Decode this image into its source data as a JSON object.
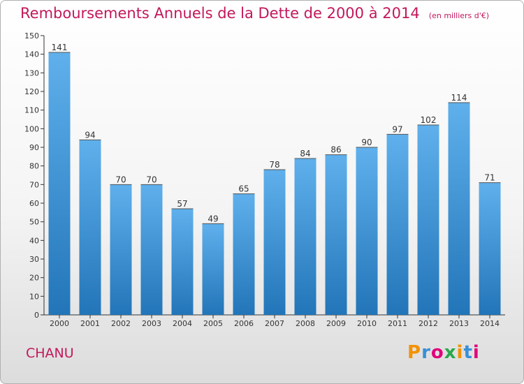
{
  "chart_data": {
    "type": "bar",
    "title": "Remboursements Annuels de la Dette de 2000 à 2014",
    "subtitle": "(en milliers d'€)",
    "categories": [
      "2000",
      "2001",
      "2002",
      "2003",
      "2004",
      "2005",
      "2006",
      "2007",
      "2008",
      "2009",
      "2010",
      "2011",
      "2012",
      "2013",
      "2014"
    ],
    "values": [
      141,
      94,
      70,
      70,
      57,
      49,
      65,
      78,
      84,
      86,
      90,
      97,
      102,
      114,
      71
    ],
    "ylim": [
      0,
      150
    ],
    "ytick_step": 10,
    "grid": false,
    "data_labels": true,
    "bar_color": "#3a8fd6",
    "bar_color_light": "#5fb0ec",
    "bar_color_dark": "#2275b8"
  },
  "footer": {
    "commune": "CHANU",
    "logo_text": "Proxiti",
    "logo_colors": [
      "#f39200",
      "#3a8fd6",
      "#e2007a",
      "#2aa84a",
      "#f39200",
      "#3a8fd6",
      "#e2007a"
    ]
  },
  "colors": {
    "title": "#c2185b",
    "axis": "#333333"
  }
}
